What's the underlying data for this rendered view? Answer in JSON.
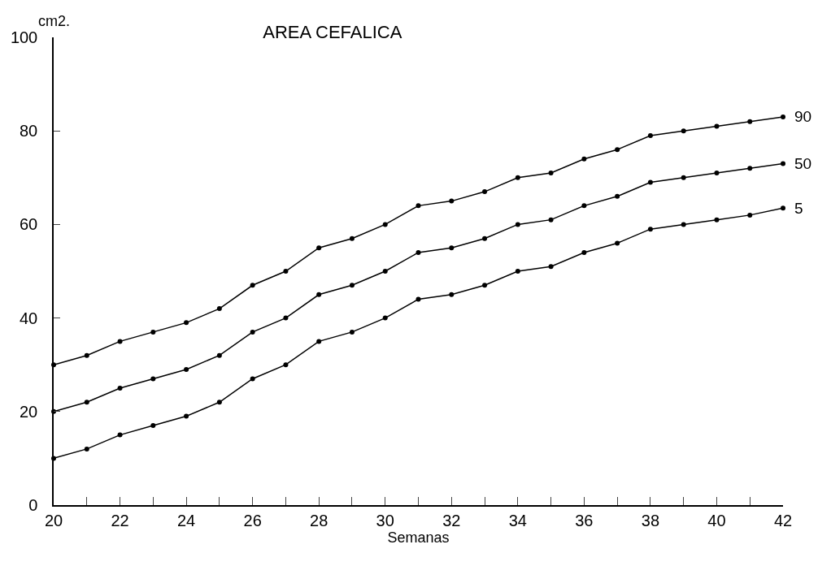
{
  "chart_data": {
    "type": "line",
    "title": "AREA CEFALICA",
    "xlabel": "Semanas",
    "ylabel": "cm2.",
    "x": [
      20,
      21,
      22,
      23,
      24,
      25,
      26,
      27,
      28,
      29,
      30,
      31,
      32,
      33,
      34,
      35,
      36,
      37,
      38,
      39,
      40,
      41,
      42
    ],
    "series": [
      {
        "name": "90",
        "color": "#000000",
        "values": [
          30,
          32,
          35,
          37,
          39,
          42,
          47,
          50,
          55,
          57,
          60,
          64,
          65,
          67,
          70,
          71,
          74,
          76,
          79,
          80,
          81,
          82,
          83
        ]
      },
      {
        "name": "50",
        "color": "#000000",
        "values": [
          20,
          22,
          25,
          27,
          29,
          32,
          37,
          40,
          45,
          47,
          50,
          54,
          55,
          57,
          60,
          61,
          64,
          66,
          69,
          70,
          71,
          72,
          73
        ]
      },
      {
        "name": "5",
        "color": "#000000",
        "values": [
          10,
          12,
          15,
          17,
          19,
          22,
          27,
          30,
          35,
          37,
          40,
          44,
          45,
          47,
          50,
          51,
          54,
          56,
          59,
          60,
          61,
          62,
          63.5
        ]
      }
    ],
    "xlim": [
      20,
      42
    ],
    "ylim": [
      0,
      100
    ],
    "xticks": [
      20,
      {
        "value": 21,
        "label": null
      },
      22,
      {
        "value": 23,
        "label": null
      },
      24,
      {
        "value": 25,
        "label": null
      },
      26,
      {
        "value": 27,
        "label": null
      },
      28,
      {
        "value": 29,
        "label": null
      },
      30,
      {
        "value": 31,
        "label": null
      },
      32,
      {
        "value": 33,
        "label": null
      },
      34,
      {
        "value": 35,
        "label": null
      },
      36,
      {
        "value": 37,
        "label": null
      },
      38,
      {
        "value": 39,
        "label": null
      },
      40,
      {
        "value": 41,
        "label": null
      },
      42
    ],
    "yticks": [
      0,
      20,
      40,
      60,
      80,
      100
    ],
    "grid": false,
    "legend": false,
    "marker": "circle",
    "line_style": "solid"
  }
}
